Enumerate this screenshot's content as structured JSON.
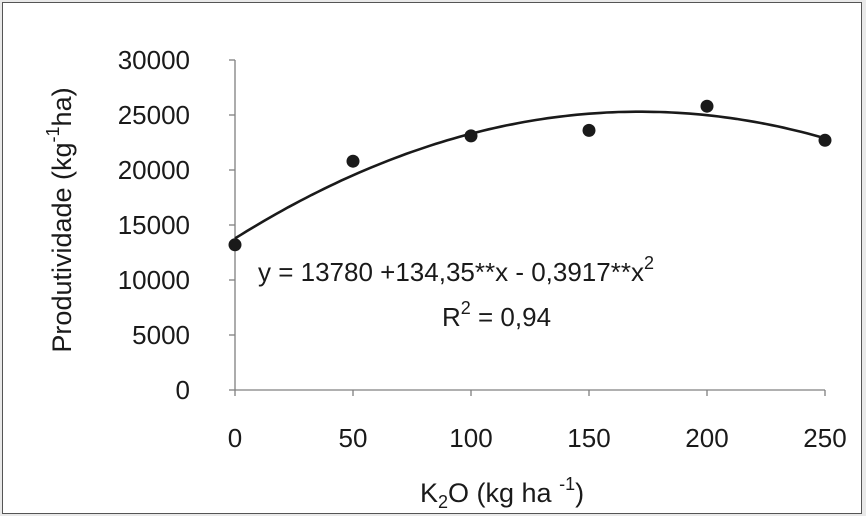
{
  "chart_data": {
    "type": "scatter",
    "x": [
      0,
      50,
      100,
      150,
      200,
      250
    ],
    "y": [
      13200,
      20800,
      23100,
      23600,
      25800,
      22700
    ],
    "xlim": [
      0,
      250
    ],
    "ylim": [
      0,
      30000
    ],
    "xticks": [
      "0",
      "50",
      "100",
      "150",
      "200",
      "250"
    ],
    "yticks": [
      "0",
      "5000",
      "10000",
      "15000",
      "20000",
      "25000",
      "30000"
    ],
    "xlabel": {
      "main": "K",
      "sub": "2",
      "rest": "O (kg ha ",
      "sup": "-1",
      "end": ")"
    },
    "ylabel": {
      "pre": "Produtividade (kg",
      "sup": "-1",
      "post": "ha)"
    },
    "fit": {
      "intercept": 13780,
      "b1": 134.35,
      "b2": -0.3917
    },
    "equation": {
      "text": "y = 13780 +134,35**x - 0,3917**x",
      "sup": "2"
    },
    "r2": {
      "pre": "R",
      "sup": "2",
      "post": " = 0,94"
    },
    "grid": false,
    "legend": "none",
    "colors": {
      "points": "#1a1a1a",
      "curve": "#1a1a1a",
      "axis": "#808080"
    }
  }
}
